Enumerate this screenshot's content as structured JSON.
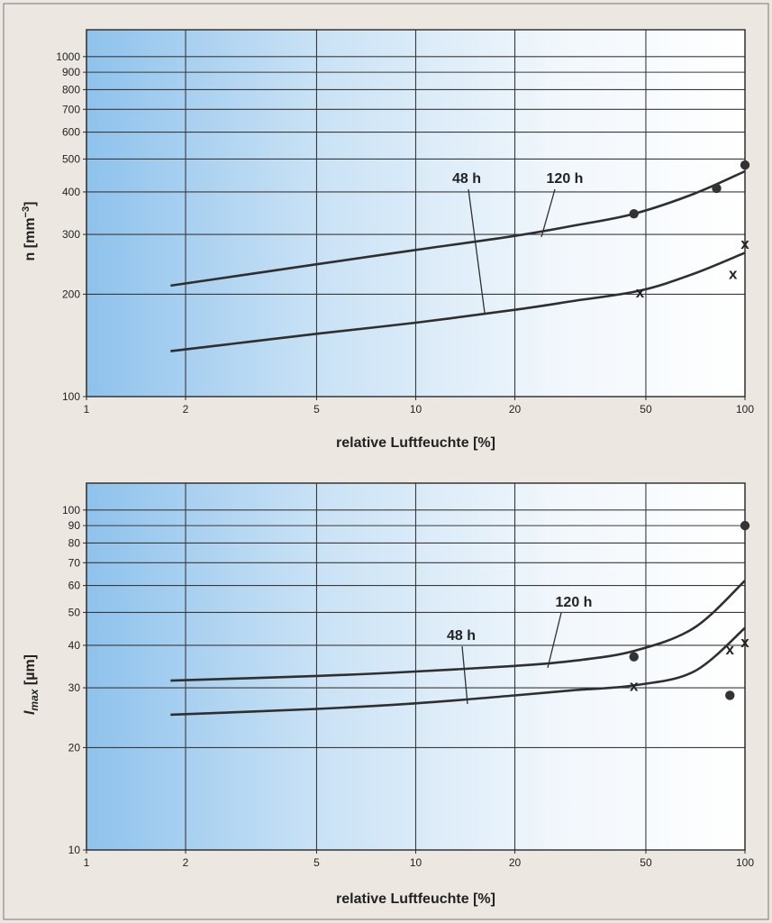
{
  "chart_data": [
    {
      "type": "line",
      "ylabel": "n [mm",
      "ylabel_sup": "−3",
      "ylabel_end": "]",
      "xlabel": "relative Luftfeuchte [%]",
      "xscale": "log",
      "yscale": "log",
      "xlim": [
        1,
        100
      ],
      "ylim": [
        100,
        1200
      ],
      "x_ticks": [
        1,
        2,
        5,
        10,
        20,
        50,
        100
      ],
      "x_tick_labels": [
        "1",
        "2",
        "5",
        "10",
        "20",
        "50",
        "100"
      ],
      "y_ticks": [
        100,
        200,
        300,
        400,
        500,
        600,
        700,
        800,
        900,
        1000
      ],
      "y_tick_labels": [
        "100",
        "200",
        "300",
        "400",
        "500",
        "600",
        "700",
        "800",
        "900",
        "1000"
      ],
      "grid": true,
      "series": [
        {
          "name": "120 h",
          "x": [
            1.8,
            5,
            10,
            20,
            30,
            46,
            70,
            100
          ],
          "values": [
            212,
            245,
            270,
            297,
            318,
            345,
            395,
            460
          ],
          "marker": "dot",
          "points": [
            {
              "x": 46,
              "y": 345
            },
            {
              "x": 82,
              "y": 410
            },
            {
              "x": 100,
              "y": 480
            }
          ]
        },
        {
          "name": "48 h",
          "x": [
            1.8,
            5,
            10,
            20,
            30,
            48,
            70,
            100
          ],
          "values": [
            136,
            153,
            165,
            180,
            191,
            205,
            230,
            265
          ],
          "marker": "x",
          "points": [
            {
              "x": 48,
              "y": 203
            },
            {
              "x": 92,
              "y": 230
            },
            {
              "x": 100,
              "y": 282
            }
          ]
        }
      ]
    },
    {
      "type": "line",
      "ylabel": "l",
      "ylabel_sub": "max",
      "ylabel_end": " [µm]",
      "xlabel": "relative Luftfeuchte [%]",
      "xscale": "log",
      "yscale": "log",
      "xlim": [
        1,
        100
      ],
      "ylim": [
        10,
        120
      ],
      "x_ticks": [
        1,
        2,
        5,
        10,
        20,
        50,
        100
      ],
      "x_tick_labels": [
        "1",
        "2",
        "5",
        "10",
        "20",
        "50",
        "100"
      ],
      "y_ticks": [
        10,
        20,
        30,
        40,
        50,
        60,
        70,
        80,
        90,
        100
      ],
      "y_tick_labels": [
        "10",
        "20",
        "30",
        "40",
        "50",
        "60",
        "70",
        "80",
        "90",
        "100"
      ],
      "grid": true,
      "series": [
        {
          "name": "120 h",
          "x": [
            1.8,
            5,
            10,
            20,
            30,
            46,
            70,
            100
          ],
          "values": [
            31.5,
            32.5,
            33.5,
            34.8,
            36,
            38.5,
            45,
            62
          ],
          "marker": "dot",
          "points": [
            {
              "x": 46,
              "y": 37
            },
            {
              "x": 90,
              "y": 28.5
            },
            {
              "x": 100,
              "y": 90
            }
          ]
        },
        {
          "name": "48 h",
          "x": [
            1.8,
            5,
            10,
            20,
            30,
            46,
            70,
            100
          ],
          "values": [
            25,
            26,
            27,
            28.5,
            29.5,
            30.5,
            33.5,
            45
          ],
          "marker": "x",
          "points": [
            {
              "x": 46,
              "y": 30.5
            },
            {
              "x": 90,
              "y": 39
            },
            {
              "x": 100,
              "y": 41
            }
          ]
        }
      ]
    }
  ]
}
